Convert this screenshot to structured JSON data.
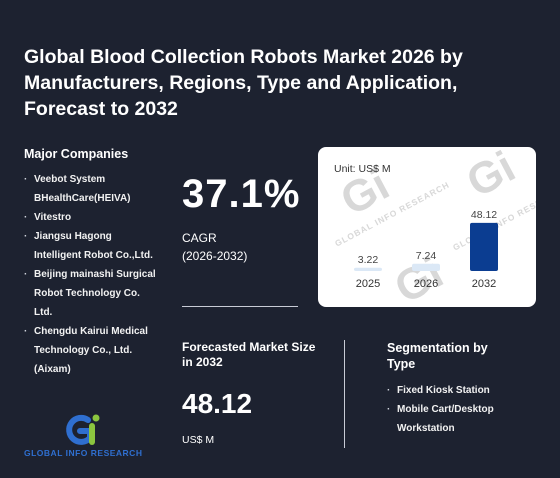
{
  "report": {
    "title": "Global Blood Collection Robots Market 2026 by Manufacturers, Regions, Type and Application, Forecast to 2032"
  },
  "companies": {
    "heading": "Major Companies",
    "items": [
      "Veebot System",
      "BHealthCare(HEIVA)",
      "Vitestro",
      "Jiangsu Hagong Intelligent Robot Co.,Ltd.",
      "Beijing mainashi Surgical Robot Technology Co. Ltd.",
      "Chengdu Kairui Medical Technology Co., Ltd. (Aixam)"
    ]
  },
  "cagr": {
    "value": "37.1%",
    "label": "CAGR",
    "period": "(2026-2032)"
  },
  "forecast": {
    "label": "Forecasted Market Size in 2032",
    "value": "48.12",
    "unit": "US$ M"
  },
  "segmentation": {
    "heading": "Segmentation by Type",
    "items": [
      "Fixed Kiosk Station",
      "Mobile Cart/Desktop Workstation"
    ]
  },
  "watermark": {
    "mark": "Gi",
    "text": "GLOBAL INFO RESEARCH"
  },
  "logo": {
    "mark": "Gi",
    "text": "GLOBAL INFO RESEARCH"
  },
  "colors": {
    "background": "#1d2230",
    "bar_highlight": "#0b3d91",
    "bar_light": "#dbe8f6",
    "logo_blue": "#2f6fd0",
    "logo_green": "#8cc63f"
  },
  "chart_data": {
    "type": "bar",
    "unit_label": "Unit: US$ M",
    "categories": [
      "2025",
      "2026",
      "2032"
    ],
    "values": [
      3.22,
      7.24,
      48.12
    ],
    "value_labels": [
      "3.22",
      "7.24",
      "48.12"
    ],
    "ylim": [
      0,
      50
    ],
    "highlight_index": 2,
    "grid": false,
    "legend": "none"
  }
}
